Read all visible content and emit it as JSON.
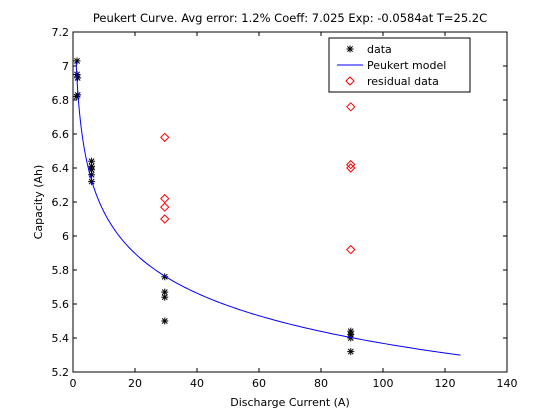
{
  "chart_data": {
    "type": "scatter",
    "title": "Peukert Curve. Avg error: 1.2% Coeff: 7.025 Exp: -0.0584at T=25.2C",
    "xlabel": "Discharge Current (A)",
    "ylabel": "Capacity (Ah)",
    "xlim": [
      0,
      140
    ],
    "ylim": [
      5.2,
      7.2
    ],
    "xticks": [
      0,
      20,
      40,
      60,
      80,
      100,
      120,
      140
    ],
    "xtick_labels": [
      "0",
      "20",
      "40",
      "60",
      "80",
      "100",
      "120",
      "140"
    ],
    "yticks": [
      5.2,
      5.4,
      5.6,
      5.8,
      6.0,
      6.2,
      6.4,
      6.6,
      6.8,
      7.0,
      7.2
    ],
    "ytick_labels": [
      "5.2",
      "5.4",
      "5.6",
      "5.8",
      "6",
      "6.2",
      "6.4",
      "6.6",
      "6.8",
      "7",
      "7.2"
    ],
    "grid": false,
    "legend_position": "top-right",
    "colors": {
      "data": "#000000",
      "model": "#0000ff",
      "residual": "#ff0000"
    },
    "series": [
      {
        "name": "data",
        "type": "scatter",
        "marker": "asterisk",
        "points": [
          [
            1.3,
            7.03
          ],
          [
            1.3,
            6.95
          ],
          [
            1.5,
            6.93
          ],
          [
            1.5,
            6.83
          ],
          [
            1.2,
            6.82
          ],
          [
            6.0,
            6.44
          ],
          [
            6.0,
            6.41
          ],
          [
            6.0,
            6.39
          ],
          [
            6.0,
            6.36
          ],
          [
            6.0,
            6.32
          ],
          [
            29.6,
            5.76
          ],
          [
            29.6,
            5.67
          ],
          [
            29.6,
            5.64
          ],
          [
            29.6,
            5.5
          ],
          [
            89.6,
            5.44
          ],
          [
            89.6,
            5.42
          ],
          [
            89.6,
            5.4
          ],
          [
            89.6,
            5.32
          ]
        ]
      },
      {
        "name": "Peukert model",
        "type": "line",
        "coeff": 7.025,
        "exp": -0.0584,
        "x_range": [
          1,
          125
        ]
      },
      {
        "name": "residual data",
        "type": "scatter",
        "marker": "diamond",
        "points": [
          [
            29.6,
            6.58
          ],
          [
            29.6,
            6.22
          ],
          [
            29.6,
            6.17
          ],
          [
            29.6,
            6.1
          ],
          [
            89.6,
            6.76
          ],
          [
            89.6,
            6.42
          ],
          [
            89.6,
            6.4
          ],
          [
            89.6,
            5.92
          ]
        ]
      }
    ]
  }
}
